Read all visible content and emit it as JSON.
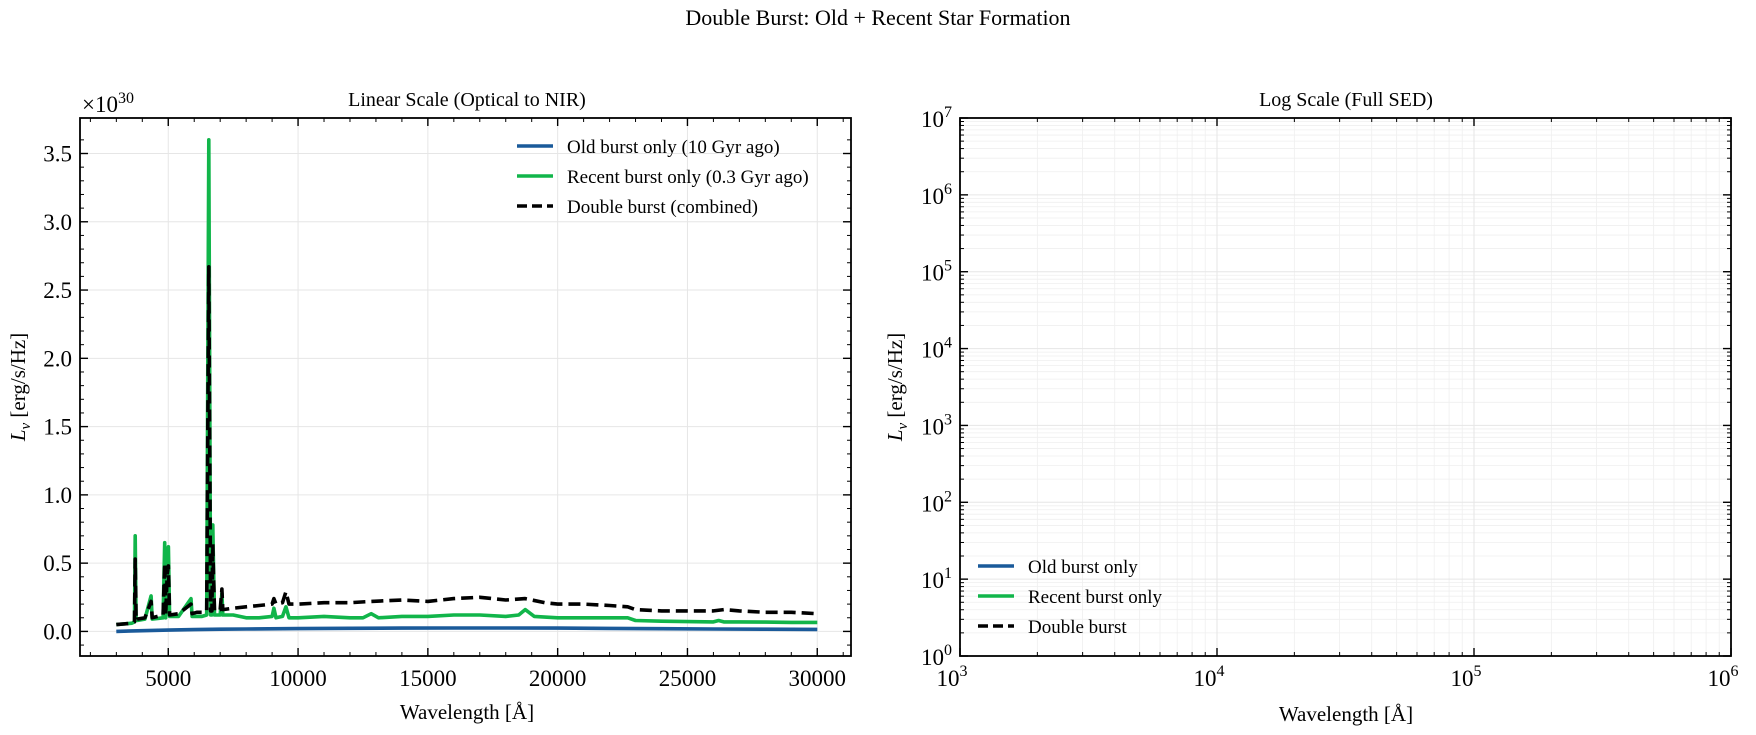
{
  "figure": {
    "title": "Double Burst: Old + Recent Star Formation"
  },
  "colors": {
    "old": "#1a5a9a",
    "recent": "#11b54a",
    "double": "#000000"
  },
  "chart_data": [
    {
      "type": "line",
      "title": "Linear Scale (Optical to NIR)",
      "xlabel": "Wavelength [Å]",
      "ylabel": "L",
      "ylabel_sub": "ν",
      "ylabel_unit": " [erg/s/Hz]",
      "xlim": [
        1600,
        31300
      ],
      "ylim": [
        -0.18,
        3.76
      ],
      "xticks": [
        "5000",
        "10000",
        "15000",
        "20000",
        "25000",
        "30000"
      ],
      "xtick_values": [
        5000,
        10000,
        15000,
        20000,
        25000,
        30000
      ],
      "yticks": [
        "0.0",
        "0.5",
        "1.0",
        "1.5",
        "2.0",
        "2.5",
        "3.0",
        "3.5"
      ],
      "ytick_values": [
        0,
        0.5,
        1.0,
        1.5,
        2.0,
        2.5,
        3.0,
        3.5
      ],
      "offset_text_base": "×10",
      "offset_text_exp": "30",
      "grid": true,
      "legend_position": "top-right",
      "series": [
        {
          "name": "Old burst only (10 Gyr ago)",
          "color": "#1a5a9a",
          "dash": "solid",
          "x": [
            3000,
            4000,
            5000,
            6000,
            7000,
            8000,
            10000,
            12000,
            14000,
            16000,
            18000,
            20000,
            22000,
            24000,
            26000,
            28000,
            30000
          ],
          "y": [
            0.0,
            0.005,
            0.01,
            0.013,
            0.016,
            0.018,
            0.021,
            0.023,
            0.024,
            0.025,
            0.025,
            0.024,
            0.022,
            0.02,
            0.018,
            0.016,
            0.015
          ]
        },
        {
          "name": "Recent burst only (0.3 Gyr ago)",
          "color": "#11b54a",
          "dash": "solid",
          "x": [
            3000,
            3600,
            3700,
            3727,
            3760,
            3800,
            4100,
            4340,
            4380,
            4800,
            4861,
            4900,
            4959,
            5007,
            5050,
            5400,
            5876,
            5920,
            6100,
            6300,
            6480,
            6563,
            6630,
            6680,
            6716,
            6731,
            6780,
            7000,
            7065,
            7100,
            7500,
            8000,
            8500,
            9000,
            9069,
            9150,
            9400,
            9532,
            9650,
            10000,
            11000,
            12000,
            12500,
            12818,
            13100,
            14000,
            15000,
            16000,
            17000,
            18000,
            18500,
            18751,
            19100,
            20000,
            21000,
            22000,
            22700,
            23000,
            24000,
            25000,
            26000,
            26200,
            26400,
            27000,
            28000,
            29000,
            30000
          ],
          "y": [
            0.05,
            0.06,
            0.07,
            0.7,
            0.08,
            0.08,
            0.09,
            0.26,
            0.09,
            0.1,
            0.65,
            0.1,
            0.5,
            0.62,
            0.11,
            0.11,
            0.24,
            0.11,
            0.11,
            0.11,
            0.12,
            3.6,
            0.12,
            0.12,
            0.78,
            0.6,
            0.12,
            0.12,
            0.28,
            0.12,
            0.12,
            0.1,
            0.1,
            0.11,
            0.17,
            0.1,
            0.11,
            0.18,
            0.1,
            0.1,
            0.11,
            0.1,
            0.1,
            0.13,
            0.1,
            0.11,
            0.11,
            0.12,
            0.12,
            0.11,
            0.12,
            0.16,
            0.11,
            0.1,
            0.1,
            0.1,
            0.1,
            0.08,
            0.075,
            0.072,
            0.07,
            0.08,
            0.07,
            0.07,
            0.068,
            0.066,
            0.066
          ]
        },
        {
          "name": "Double burst (combined)",
          "color": "#000000",
          "dash": "dashed",
          "x": [
            3000,
            3600,
            3700,
            3727,
            3760,
            3800,
            4100,
            4340,
            4380,
            4800,
            4861,
            4900,
            4959,
            5007,
            5050,
            5400,
            5876,
            5920,
            6100,
            6300,
            6480,
            6563,
            6630,
            6680,
            6716,
            6731,
            6780,
            7000,
            7065,
            7100,
            7500,
            8000,
            8500,
            9000,
            9069,
            9150,
            9400,
            9532,
            9650,
            10000,
            11000,
            12000,
            12818,
            14000,
            15000,
            16000,
            17000,
            18000,
            18751,
            19500,
            20000,
            21000,
            22000,
            22700,
            23000,
            24000,
            25000,
            26000,
            26400,
            27000,
            28000,
            29000,
            30000
          ],
          "y": [
            0.05,
            0.06,
            0.07,
            0.53,
            0.08,
            0.09,
            0.1,
            0.22,
            0.1,
            0.12,
            0.5,
            0.12,
            0.42,
            0.48,
            0.12,
            0.13,
            0.2,
            0.13,
            0.14,
            0.14,
            0.15,
            2.67,
            0.15,
            0.15,
            0.64,
            0.5,
            0.15,
            0.16,
            0.31,
            0.16,
            0.17,
            0.18,
            0.19,
            0.2,
            0.24,
            0.2,
            0.21,
            0.29,
            0.2,
            0.2,
            0.21,
            0.21,
            0.22,
            0.23,
            0.22,
            0.24,
            0.25,
            0.23,
            0.24,
            0.21,
            0.2,
            0.2,
            0.19,
            0.18,
            0.16,
            0.15,
            0.15,
            0.15,
            0.16,
            0.15,
            0.14,
            0.14,
            0.13
          ]
        }
      ]
    },
    {
      "type": "line",
      "title": "Log Scale (Full SED)",
      "xlabel": "Wavelength [Å]",
      "ylabel": "L",
      "ylabel_sub": "ν",
      "ylabel_unit": " [erg/s/Hz]",
      "xscale": "log",
      "yscale": "log",
      "xlim": [
        1000,
        1000000
      ],
      "ylim": [
        1,
        10000000
      ],
      "xticks_exp": [
        "3",
        "4",
        "5",
        "6"
      ],
      "yticks_exp": [
        "0",
        "1",
        "2",
        "3",
        "4",
        "5",
        "6",
        "7"
      ],
      "tick_base": "10",
      "grid": true,
      "legend_position": "lower-left",
      "series": [
        {
          "name": "Old burst only",
          "color": "#1a5a9a",
          "dash": "solid",
          "x": [],
          "y": []
        },
        {
          "name": "Recent burst only",
          "color": "#11b54a",
          "dash": "solid",
          "x": [],
          "y": []
        },
        {
          "name": "Double burst",
          "color": "#000000",
          "dash": "dashed",
          "x": [],
          "y": []
        }
      ]
    }
  ]
}
